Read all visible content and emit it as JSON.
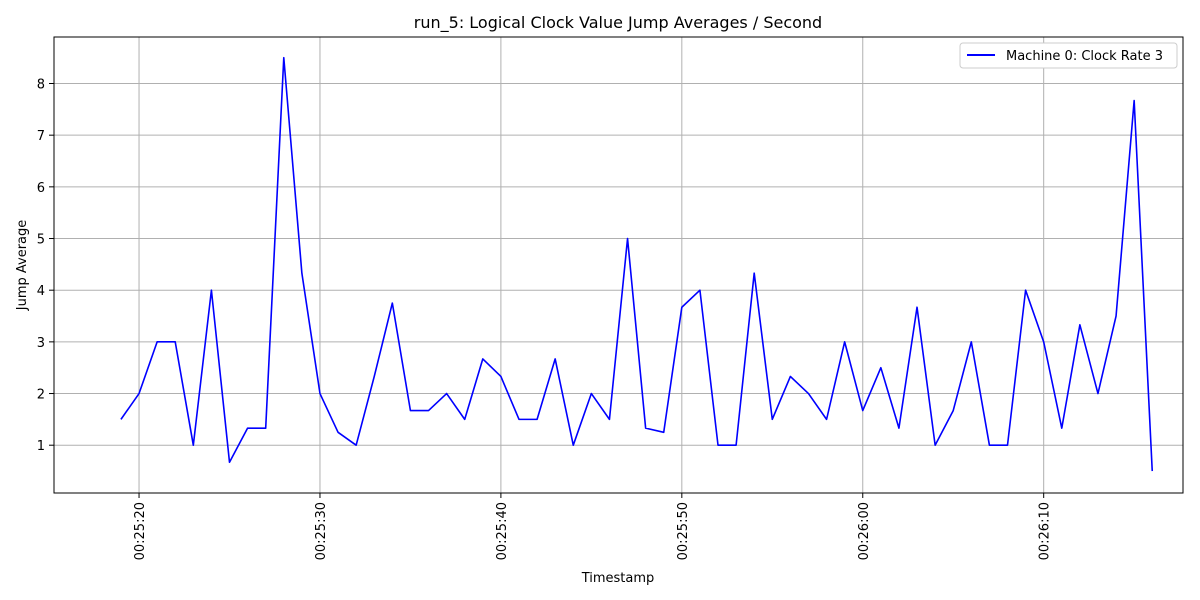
{
  "chart_data": {
    "type": "line",
    "title": "run_5: Logical Clock Value Jump Averages / Second",
    "xlabel": "Timestamp",
    "ylabel": "Jump Average",
    "x_start_seconds": 1519,
    "x_step_seconds": 1,
    "xlim_seconds": [
      1515.3,
      1577.7
    ],
    "ylim": [
      0.075,
      8.9
    ],
    "x_ticks": [
      {
        "seconds": 1520,
        "label": "00:25:20"
      },
      {
        "seconds": 1530,
        "label": "00:25:30"
      },
      {
        "seconds": 1540,
        "label": "00:25:40"
      },
      {
        "seconds": 1550,
        "label": "00:25:50"
      },
      {
        "seconds": 1560,
        "label": "00:26:00"
      },
      {
        "seconds": 1570,
        "label": "00:26:10"
      }
    ],
    "y_ticks": [
      1,
      2,
      3,
      4,
      5,
      6,
      7,
      8
    ],
    "grid": true,
    "legend_position": "top-right",
    "series": [
      {
        "name": "Machine 0: Clock Rate 3",
        "color": "#0000ff",
        "values": [
          1.5,
          2.0,
          3.0,
          3.0,
          1.0,
          4.0,
          0.67,
          1.33,
          1.33,
          8.5,
          4.33,
          2.0,
          1.25,
          1.0,
          2.33,
          3.75,
          1.67,
          1.67,
          2.0,
          1.5,
          2.67,
          2.33,
          1.5,
          1.5,
          2.67,
          1.0,
          2.0,
          1.5,
          5.0,
          1.33,
          1.25,
          3.67,
          4.0,
          1.0,
          1.0,
          4.33,
          1.5,
          2.33,
          2.0,
          1.5,
          3.0,
          1.67,
          2.5,
          1.33,
          3.67,
          1.0,
          1.67,
          3.0,
          1.0,
          1.0,
          4.0,
          3.0,
          1.33,
          3.33,
          2.0,
          3.5,
          7.67,
          0.5
        ]
      }
    ]
  }
}
